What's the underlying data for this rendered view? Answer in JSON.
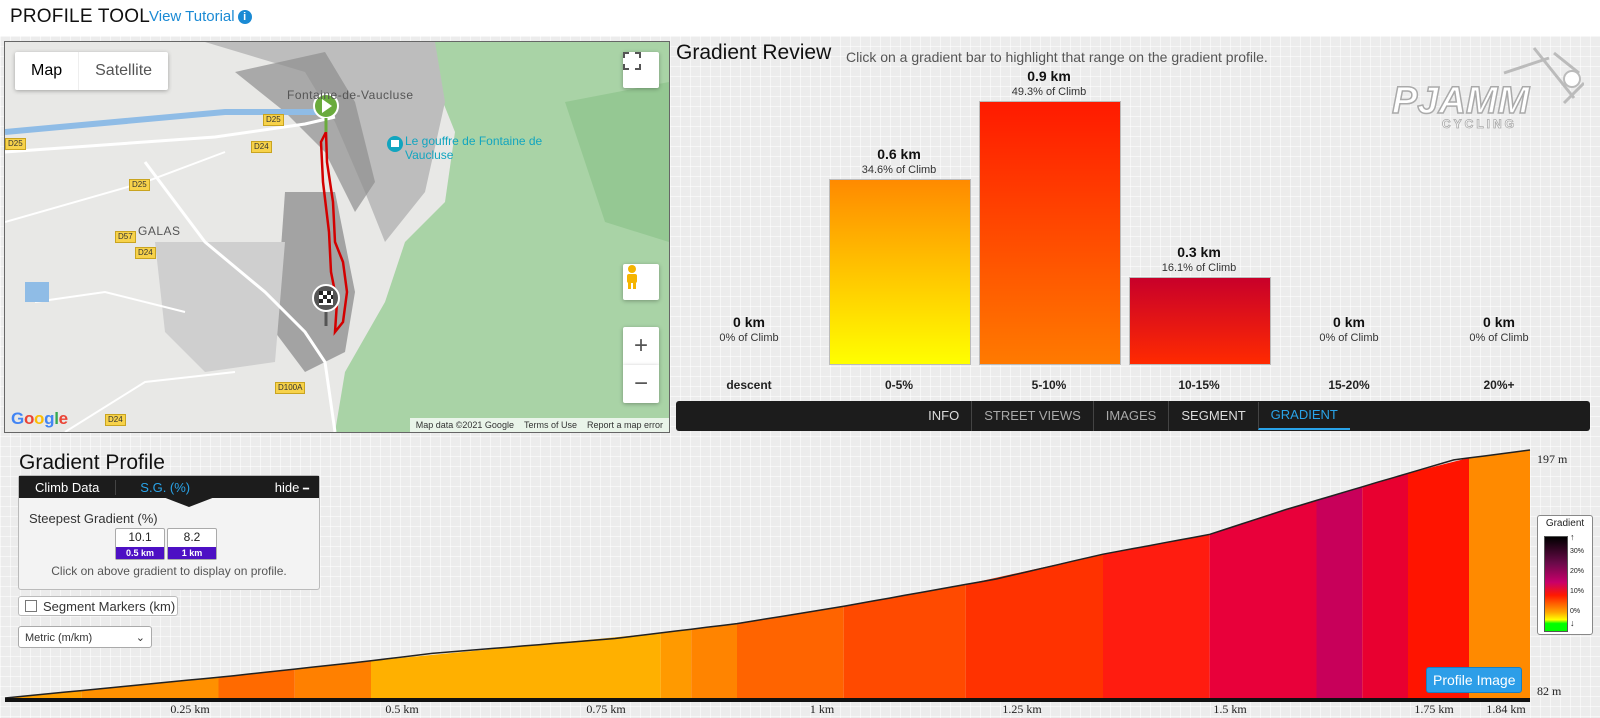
{
  "header": {
    "title": "PROFILE TOOL",
    "tutorial_link": "View Tutorial",
    "info_glyph": "i"
  },
  "map": {
    "type_buttons": [
      "Map",
      "Satellite"
    ],
    "labels": {
      "town": "Fontaine-de-Vaucluse",
      "poi": "Le gouffre de Fontaine de Vaucluse",
      "galas": "GALAS",
      "d25a": "D25",
      "d25b": "D25",
      "d24a": "D24",
      "d57": "D57",
      "d24b": "D24",
      "d25c": "D25",
      "d100a": "D100A",
      "d24c": "D24"
    },
    "footer": {
      "data": "Map data ©2021 Google",
      "terms": "Terms of Use",
      "report": "Report a map error"
    },
    "google_logo": "Google",
    "icons": {
      "fullscreen": "fullscreen-icon",
      "pegman": "pegman-icon",
      "zoom_in": "+",
      "zoom_out": "−"
    }
  },
  "review": {
    "title": "Gradient Review",
    "hint": "Click on a gradient bar to highlight that range on the gradient profile.",
    "logo_main": "PJAMM",
    "logo_sub": "CYCLING",
    "bars": [
      {
        "km": "0 km",
        "pct": "0% of Climb",
        "cat": "descent",
        "fraction": 0.0
      },
      {
        "km": "0.6 km",
        "pct": "34.6% of Climb",
        "cat": "0-5%",
        "fraction": 0.346
      },
      {
        "km": "0.9 km",
        "pct": "49.3% of Climb",
        "cat": "5-10%",
        "fraction": 0.493
      },
      {
        "km": "0.3 km",
        "pct": "16.1% of Climb",
        "cat": "10-15%",
        "fraction": 0.161
      },
      {
        "km": "0 km",
        "pct": "0% of Climb",
        "cat": "15-20%",
        "fraction": 0.0
      },
      {
        "km": "0 km",
        "pct": "0% of Climb",
        "cat": "20%+",
        "fraction": 0.0
      }
    ],
    "tabs": [
      "INFO",
      "STREET VIEWS",
      "IMAGES",
      "SEGMENT",
      "GRADIENT"
    ],
    "active_tab": "GRADIENT"
  },
  "profile": {
    "title": "Gradient Profile",
    "climb_box": {
      "tab_data": "Climb Data",
      "tab_sg": "S.G. (%)",
      "hide": "hide",
      "hide_glyph": "━",
      "steepest_label": "Steepest Gradient (%)",
      "cards": [
        {
          "value": "10.1",
          "tag": "0.5 km"
        },
        {
          "value": "8.2",
          "tag": "1 km"
        }
      ],
      "note": "Click on above gradient to display on profile."
    },
    "segment_markers": "Segment Markers (km)",
    "unit_select": "Metric (m/km)",
    "unit_chevron": "⌄",
    "legend": {
      "title": "Gradient",
      "ticks": [
        "30%",
        "20%",
        "10%",
        "0%"
      ],
      "arrow_up": "↑",
      "arrow_down": "↓"
    },
    "profile_button": "Profile Image",
    "elev_max": "197 m",
    "elev_min": "82 m",
    "x_ticks": [
      "0.25 km",
      "0.5 km",
      "0.75 km",
      "1 km",
      "1.25 km",
      "1.5 km",
      "1.75 km",
      "1.84 km"
    ],
    "colors": {
      "accent": "#29a3e8",
      "tab_bg": "#1c1c1c",
      "sg_tag": "#4d10c4"
    }
  }
}
